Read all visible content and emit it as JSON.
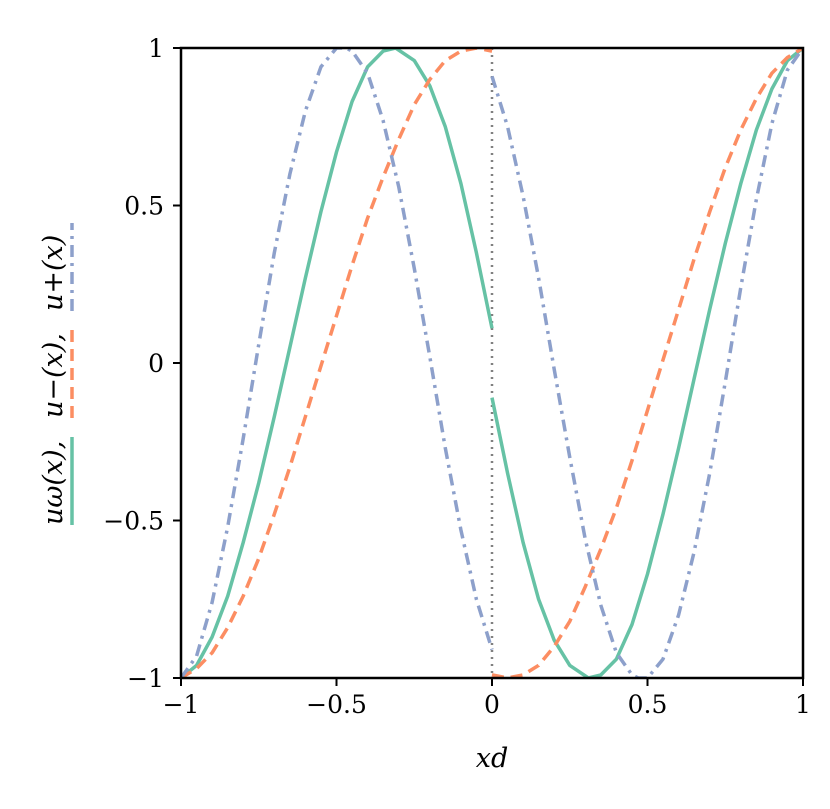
{
  "chart_data": {
    "type": "line",
    "xlabel": "xd",
    "ylabel_segments": [
      {
        "text": "uω(x),",
        "series": 0
      },
      {
        "text": "u−(x),",
        "series": 1
      },
      {
        "text": "u+(x)",
        "series": 2
      }
    ],
    "xlim": [
      -1,
      1
    ],
    "ylim": [
      -1,
      1
    ],
    "xticks": [
      -1,
      -0.5,
      0,
      0.5,
      1
    ],
    "xtick_labels": [
      "−1",
      "−0.5",
      "0",
      "0.5",
      "1"
    ],
    "yticks": [
      -1,
      -0.5,
      0,
      0.5,
      1
    ],
    "ytick_labels": [
      "−1",
      "−0.5",
      "0",
      "0.5",
      "1"
    ],
    "grid": false,
    "vline_x": 0,
    "series": [
      {
        "color": "#66c2a5",
        "style": "solid",
        "points": [
          [
            -1.0,
            -1.0
          ],
          [
            -0.95,
            -0.96
          ],
          [
            -0.9,
            -0.87
          ],
          [
            -0.85,
            -0.74
          ],
          [
            -0.8,
            -0.57
          ],
          [
            -0.75,
            -0.38
          ],
          [
            -0.7,
            -0.17
          ],
          [
            -0.65,
            0.05
          ],
          [
            -0.6,
            0.27
          ],
          [
            -0.55,
            0.48
          ],
          [
            -0.5,
            0.67
          ],
          [
            -0.45,
            0.83
          ],
          [
            -0.4,
            0.94
          ],
          [
            -0.35,
            0.99
          ],
          [
            -0.31,
            1.0
          ],
          [
            -0.25,
            0.96
          ],
          [
            -0.2,
            0.88
          ],
          [
            -0.15,
            0.75
          ],
          [
            -0.1,
            0.57
          ],
          [
            -0.05,
            0.35
          ],
          [
            0.0,
            0.11
          ],
          null,
          [
            0.0,
            -0.11
          ],
          [
            0.05,
            -0.35
          ],
          [
            0.1,
            -0.57
          ],
          [
            0.15,
            -0.75
          ],
          [
            0.2,
            -0.88
          ],
          [
            0.25,
            -0.96
          ],
          [
            0.31,
            -1.0
          ],
          [
            0.35,
            -0.99
          ],
          [
            0.4,
            -0.94
          ],
          [
            0.45,
            -0.83
          ],
          [
            0.5,
            -0.67
          ],
          [
            0.55,
            -0.48
          ],
          [
            0.6,
            -0.27
          ],
          [
            0.65,
            -0.05
          ],
          [
            0.7,
            0.17
          ],
          [
            0.75,
            0.38
          ],
          [
            0.8,
            0.57
          ],
          [
            0.85,
            0.74
          ],
          [
            0.9,
            0.87
          ],
          [
            0.95,
            0.96
          ],
          [
            1.0,
            1.0
          ]
        ]
      },
      {
        "color": "#fc8d62",
        "style": "dashed",
        "points": [
          [
            -1.0,
            -1.0
          ],
          [
            -0.95,
            -0.97
          ],
          [
            -0.9,
            -0.92
          ],
          [
            -0.85,
            -0.84
          ],
          [
            -0.8,
            -0.74
          ],
          [
            -0.75,
            -0.62
          ],
          [
            -0.7,
            -0.48
          ],
          [
            -0.65,
            -0.33
          ],
          [
            -0.6,
            -0.17
          ],
          [
            -0.55,
            -0.01
          ],
          [
            -0.5,
            0.15
          ],
          [
            -0.45,
            0.31
          ],
          [
            -0.4,
            0.46
          ],
          [
            -0.35,
            0.59
          ],
          [
            -0.3,
            0.71
          ],
          [
            -0.25,
            0.82
          ],
          [
            -0.2,
            0.9
          ],
          [
            -0.15,
            0.96
          ],
          [
            -0.1,
            0.99
          ],
          [
            -0.05,
            1.0
          ],
          [
            0.0,
            0.99
          ],
          null,
          [
            0.0,
            -0.99
          ],
          [
            0.05,
            -1.0
          ],
          [
            0.1,
            -0.99
          ],
          [
            0.15,
            -0.96
          ],
          [
            0.2,
            -0.9
          ],
          [
            0.25,
            -0.82
          ],
          [
            0.3,
            -0.71
          ],
          [
            0.35,
            -0.59
          ],
          [
            0.4,
            -0.46
          ],
          [
            0.45,
            -0.31
          ],
          [
            0.5,
            -0.15
          ],
          [
            0.55,
            0.01
          ],
          [
            0.6,
            0.17
          ],
          [
            0.65,
            0.33
          ],
          [
            0.7,
            0.48
          ],
          [
            0.75,
            0.62
          ],
          [
            0.8,
            0.74
          ],
          [
            0.85,
            0.84
          ],
          [
            0.9,
            0.92
          ],
          [
            0.95,
            0.97
          ],
          [
            1.0,
            1.0
          ]
        ]
      },
      {
        "color": "#8da0cb",
        "style": "dashdot",
        "points": [
          [
            -1.0,
            -1.0
          ],
          [
            -0.95,
            -0.93
          ],
          [
            -0.9,
            -0.76
          ],
          [
            -0.85,
            -0.52
          ],
          [
            -0.8,
            -0.24
          ],
          [
            -0.75,
            0.06
          ],
          [
            -0.7,
            0.35
          ],
          [
            -0.65,
            0.6
          ],
          [
            -0.6,
            0.8
          ],
          [
            -0.55,
            0.94
          ],
          [
            -0.5,
            1.0
          ],
          [
            -0.47,
            1.0
          ],
          [
            -0.45,
            0.99
          ],
          [
            -0.4,
            0.92
          ],
          [
            -0.35,
            0.77
          ],
          [
            -0.3,
            0.56
          ],
          [
            -0.25,
            0.3
          ],
          [
            -0.2,
            0.02
          ],
          [
            -0.15,
            -0.27
          ],
          [
            -0.1,
            -0.53
          ],
          [
            -0.05,
            -0.75
          ],
          [
            0.0,
            -0.91
          ],
          null,
          [
            0.0,
            0.91
          ],
          [
            0.05,
            0.75
          ],
          [
            0.1,
            0.53
          ],
          [
            0.15,
            0.27
          ],
          [
            0.2,
            -0.02
          ],
          [
            0.25,
            -0.3
          ],
          [
            0.3,
            -0.56
          ],
          [
            0.35,
            -0.77
          ],
          [
            0.4,
            -0.92
          ],
          [
            0.45,
            -0.99
          ],
          [
            0.47,
            -1.0
          ],
          [
            0.5,
            -1.0
          ],
          [
            0.55,
            -0.94
          ],
          [
            0.6,
            -0.8
          ],
          [
            0.65,
            -0.6
          ],
          [
            0.7,
            -0.35
          ],
          [
            0.75,
            -0.06
          ],
          [
            0.8,
            0.24
          ],
          [
            0.85,
            0.52
          ],
          [
            0.9,
            0.76
          ],
          [
            0.95,
            0.93
          ],
          [
            1.0,
            1.0
          ]
        ]
      }
    ]
  }
}
